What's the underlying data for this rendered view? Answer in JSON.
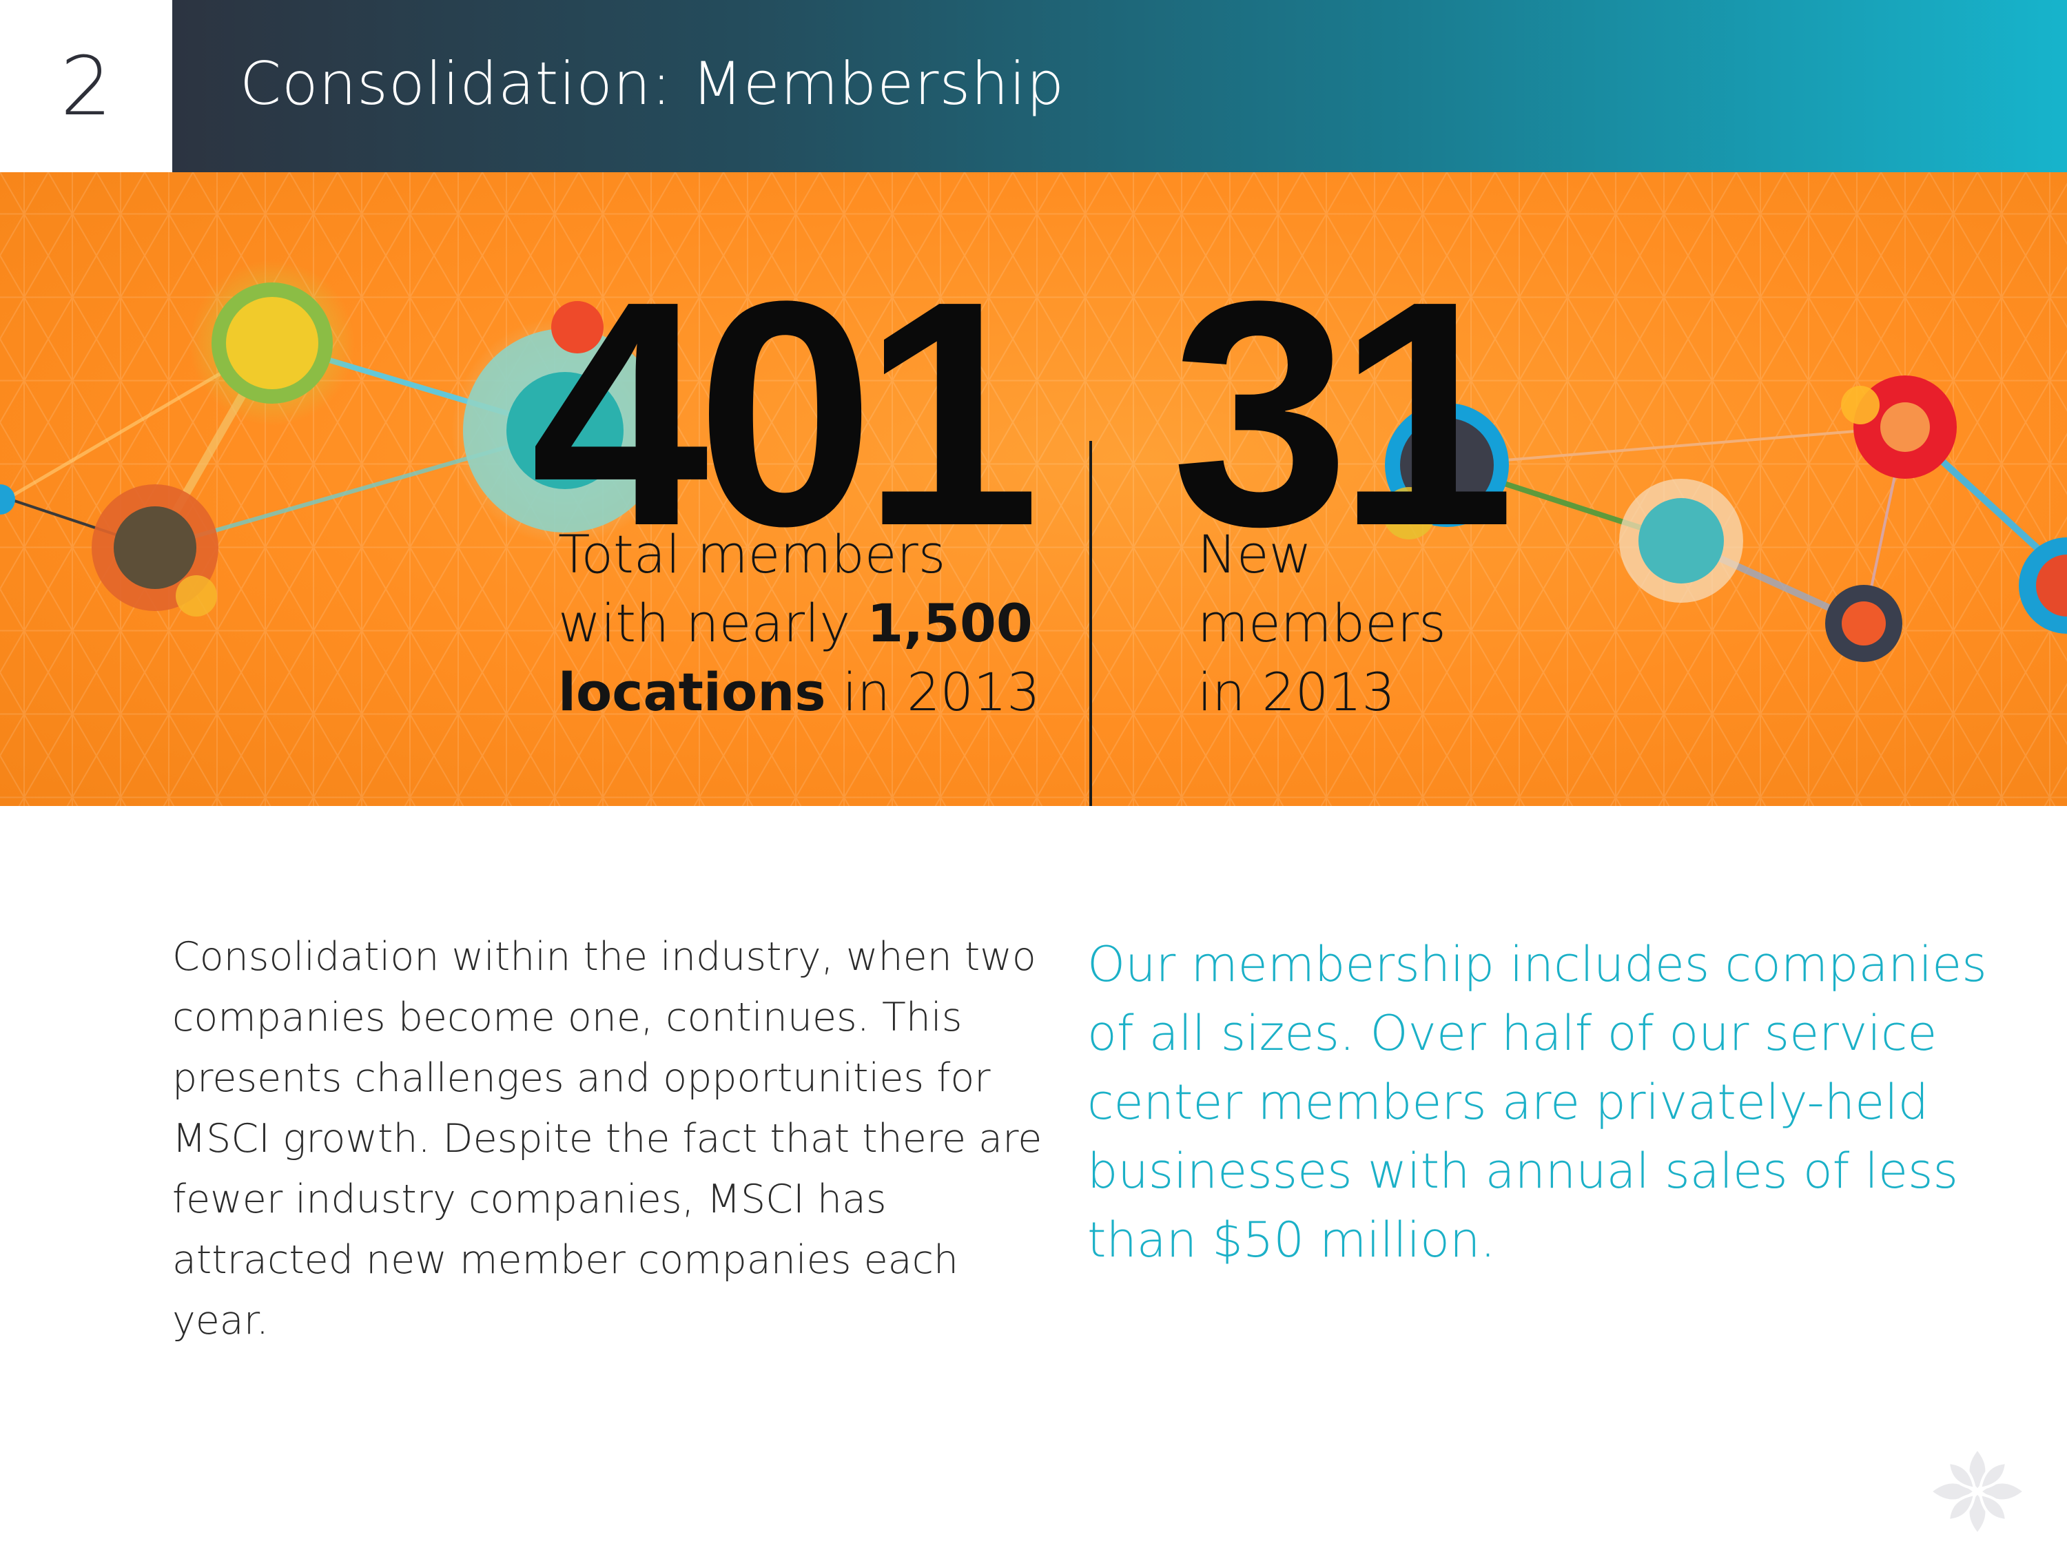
{
  "header": {
    "page_number": "2",
    "title": "Consolidation: Membership"
  },
  "stats": {
    "total": {
      "value": "401",
      "caption_line1": "Total members",
      "caption_line2_prefix": "with nearly ",
      "caption_line2_bold": "1,500",
      "caption_line3_bold": "locations",
      "caption_line3_suffix": " in 2013"
    },
    "new": {
      "value": "31",
      "caption_line1": "New",
      "caption_line2": "members",
      "caption_line3": "in 2013"
    }
  },
  "body": {
    "paragraph": "Consolidation within the industry, when two companies become one, continues. This presents challenges and opportunities for MSCI growth. Despite the fact that there are fewer industry companies, MSCI has attracted new member companies each year."
  },
  "quote": {
    "text": "Our membership includes companies of all sizes. Over half of our service center members are privately-held businesses with annual sales of less than $50 million."
  },
  "colors": {
    "header_dark": "#2c3441",
    "header_light": "#17b4cc",
    "orange": "#ff8e22",
    "teal_text": "#1bb0c7",
    "number_black": "#0a0a0a"
  },
  "icons": {
    "corner_logo": "quatrefoil-logo-icon"
  }
}
